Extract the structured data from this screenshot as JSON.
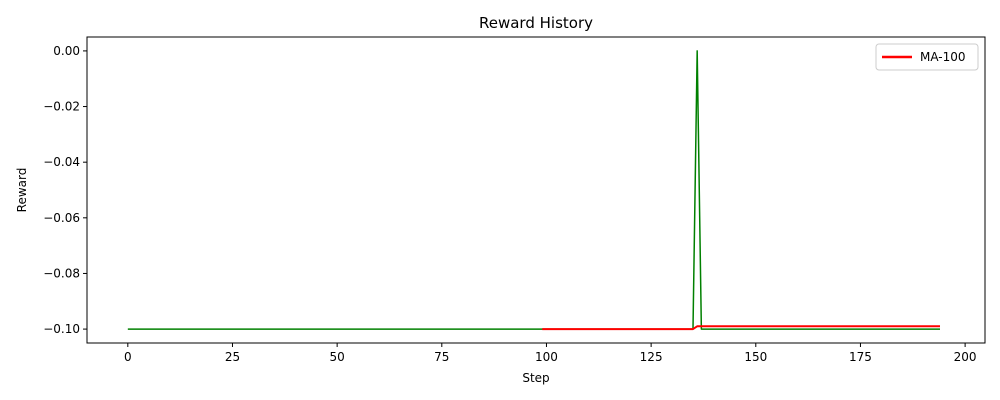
{
  "chart_data": {
    "type": "line",
    "title": "Reward History",
    "xlabel": "Step",
    "ylabel": "Reward",
    "xlim": [
      -9.75,
      204.75
    ],
    "ylim": [
      -0.105,
      0.005
    ],
    "xticks": [
      0,
      25,
      50,
      75,
      100,
      125,
      150,
      175,
      200
    ],
    "xtick_labels": [
      "0",
      "25",
      "50",
      "75",
      "100",
      "125",
      "150",
      "175",
      "200"
    ],
    "yticks": [
      0.0,
      -0.02,
      -0.04,
      -0.06,
      -0.08,
      -0.1
    ],
    "ytick_labels": [
      "0.00",
      "−0.02",
      "−0.04",
      "−0.06",
      "−0.08",
      "−0.10"
    ],
    "grid": false,
    "legend_position": "top-right",
    "series": [
      {
        "color": "#008000",
        "x": [
          0,
          135,
          136,
          137,
          194
        ],
        "y": [
          -0.1,
          -0.1,
          0.0,
          -0.1,
          -0.1
        ]
      },
      {
        "name": "MA-100",
        "color": "#ff0000",
        "x": [
          99,
          135,
          136,
          194
        ],
        "y": [
          -0.1,
          -0.1,
          -0.099,
          -0.099
        ]
      }
    ]
  }
}
